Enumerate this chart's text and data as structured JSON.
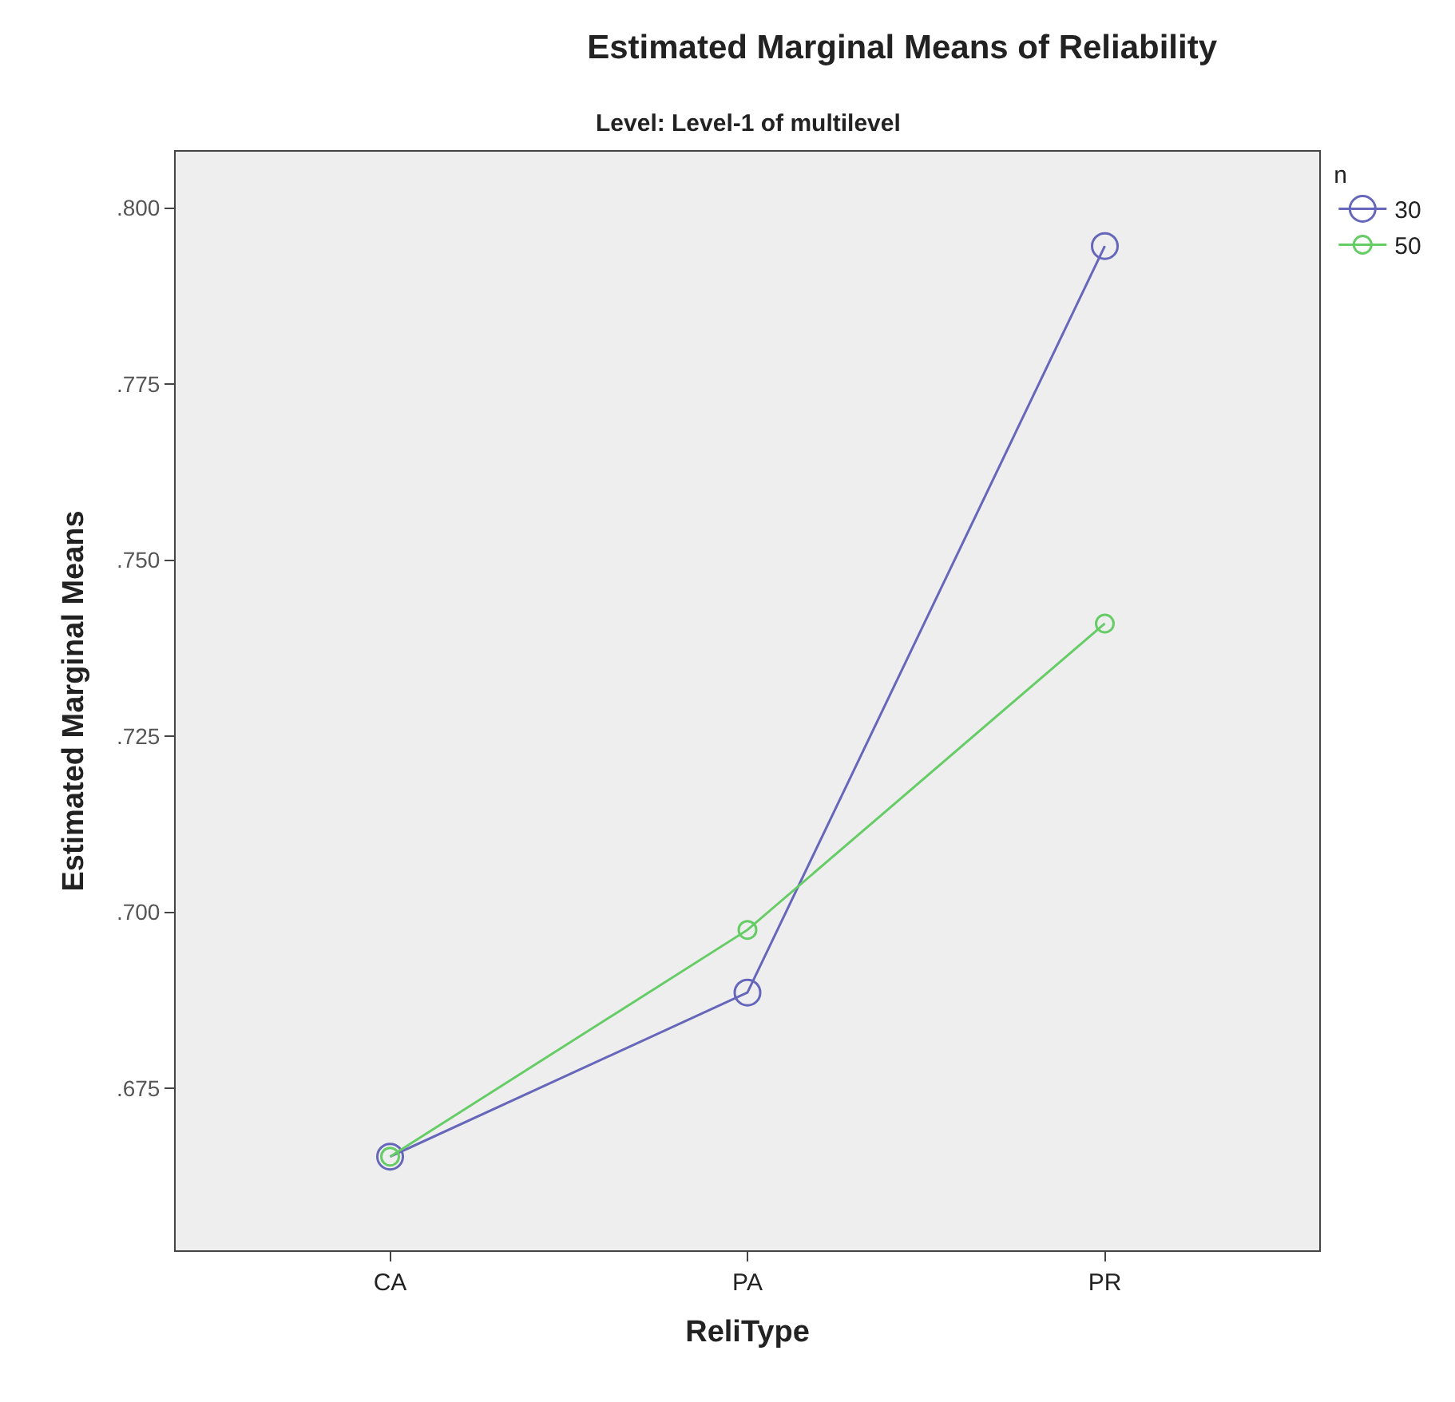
{
  "chart_data": {
    "type": "line",
    "title": "Estimated Marginal Means of Reliability",
    "subtitle": "Level: Level-1 of multilevel",
    "xlabel": "ReliType",
    "ylabel": "Estimated Marginal Means",
    "legend_title": "n",
    "categories": [
      "CA",
      "PA",
      "PR"
    ],
    "series": [
      {
        "name": "30",
        "color": "#6666bb",
        "values": [
          0.6653,
          0.6886,
          0.7946
        ]
      },
      {
        "name": "50",
        "color": "#66cc66",
        "values": [
          0.6653,
          0.6975,
          0.741
        ]
      }
    ],
    "ylim": [
      0.652,
      0.808
    ],
    "yticks": [
      {
        "value": 0.675,
        "label": ".675"
      },
      {
        "value": 0.7,
        "label": ".700"
      },
      {
        "value": 0.725,
        "label": ".725"
      },
      {
        "value": 0.75,
        "label": ".750"
      },
      {
        "value": 0.775,
        "label": ".775"
      },
      {
        "value": 0.8,
        "label": ".800"
      }
    ],
    "grid": false,
    "legend": "top right",
    "marker": "circle",
    "line_style": "solid"
  }
}
